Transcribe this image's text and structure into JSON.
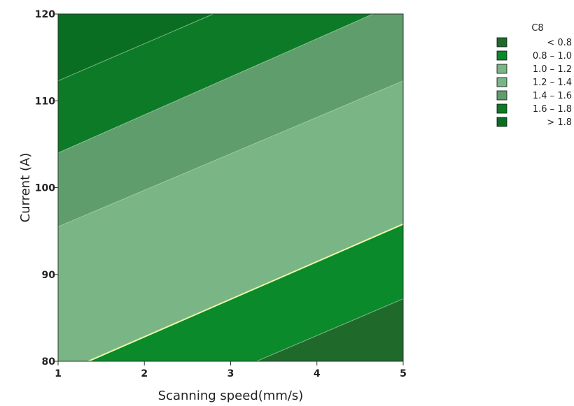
{
  "chart_data": {
    "type": "contour",
    "title": "",
    "xlabel": "Scanning speed(mm/s)",
    "ylabel": "Current (A)",
    "xlim": [
      1,
      5
    ],
    "ylim": [
      80,
      120
    ],
    "x_ticks": [
      1,
      2,
      3,
      4,
      5
    ],
    "y_ticks": [
      80,
      90,
      100,
      110,
      120
    ],
    "legend": {
      "title": "C8",
      "position": "top-right",
      "entries": [
        {
          "label": "< 0.8",
          "lower": null,
          "upper": 0.8,
          "color": "#1f6a2b"
        },
        {
          "label": "0.8 – 1.0",
          "lower": 0.8,
          "upper": 1.0,
          "color": "#0a8a2a"
        },
        {
          "label": "1.0 – 1.2",
          "lower": 1.0,
          "upper": 1.2,
          "color": "#7ab585"
        },
        {
          "label": "1.2 – 1.4",
          "lower": 1.2,
          "upper": 1.4,
          "color": "#7ab585"
        },
        {
          "label": "1.4 – 1.6",
          "lower": 1.4,
          "upper": 1.6,
          "color": "#5f9e6c"
        },
        {
          "label": "1.6 – 1.8",
          "lower": 1.6,
          "upper": 1.8,
          "color": "#0c7a26"
        },
        {
          "label": "> 1.8",
          "lower": 1.8,
          "upper": null,
          "color": "#0a6e22"
        }
      ]
    },
    "contour_lines": [
      {
        "level": 0.8,
        "points": [
          [
            3.3,
            80
          ],
          [
            5,
            87.2
          ]
        ]
      },
      {
        "level": 1.0,
        "points": [
          [
            1.35,
            80
          ],
          [
            5,
            95.8
          ]
        ]
      },
      {
        "level": 1.2,
        "points": [
          [
            1.35,
            80
          ],
          [
            5,
            95.8
          ]
        ]
      },
      {
        "level": 1.4,
        "points": [
          [
            1,
            95.5
          ],
          [
            5,
            112.3
          ]
        ]
      },
      {
        "level": 1.6,
        "points": [
          [
            1,
            104
          ],
          [
            4.65,
            120
          ]
        ]
      },
      {
        "level": 1.8,
        "points": [
          [
            1,
            112.3
          ],
          [
            2.8,
            120
          ]
        ]
      }
    ],
    "regions": [
      {
        "range": "< 0.8",
        "polygon": [
          [
            3.3,
            80
          ],
          [
            5,
            80
          ],
          [
            5,
            87.2
          ]
        ]
      },
      {
        "range": "0.8 – 1.0",
        "polygon": [
          [
            1.35,
            80
          ],
          [
            3.3,
            80
          ],
          [
            5,
            87.2
          ],
          [
            5,
            95.8
          ]
        ]
      },
      {
        "range": "1.2 – 1.4",
        "polygon": [
          [
            1,
            80
          ],
          [
            1.35,
            80
          ],
          [
            5,
            95.8
          ],
          [
            5,
            112.3
          ],
          [
            1,
            95.5
          ]
        ]
      },
      {
        "range": "1.4 – 1.6",
        "polygon": [
          [
            1,
            95.5
          ],
          [
            5,
            112.3
          ],
          [
            5,
            120
          ],
          [
            4.65,
            120
          ],
          [
            1,
            104
          ]
        ]
      },
      {
        "range": "1.6 – 1.8",
        "polygon": [
          [
            1,
            104
          ],
          [
            4.65,
            120
          ],
          [
            2.8,
            120
          ],
          [
            1,
            112.3
          ]
        ]
      },
      {
        "range": "> 1.8",
        "polygon": [
          [
            1,
            112.3
          ],
          [
            2.8,
            120
          ],
          [
            1,
            120
          ]
        ]
      }
    ]
  }
}
